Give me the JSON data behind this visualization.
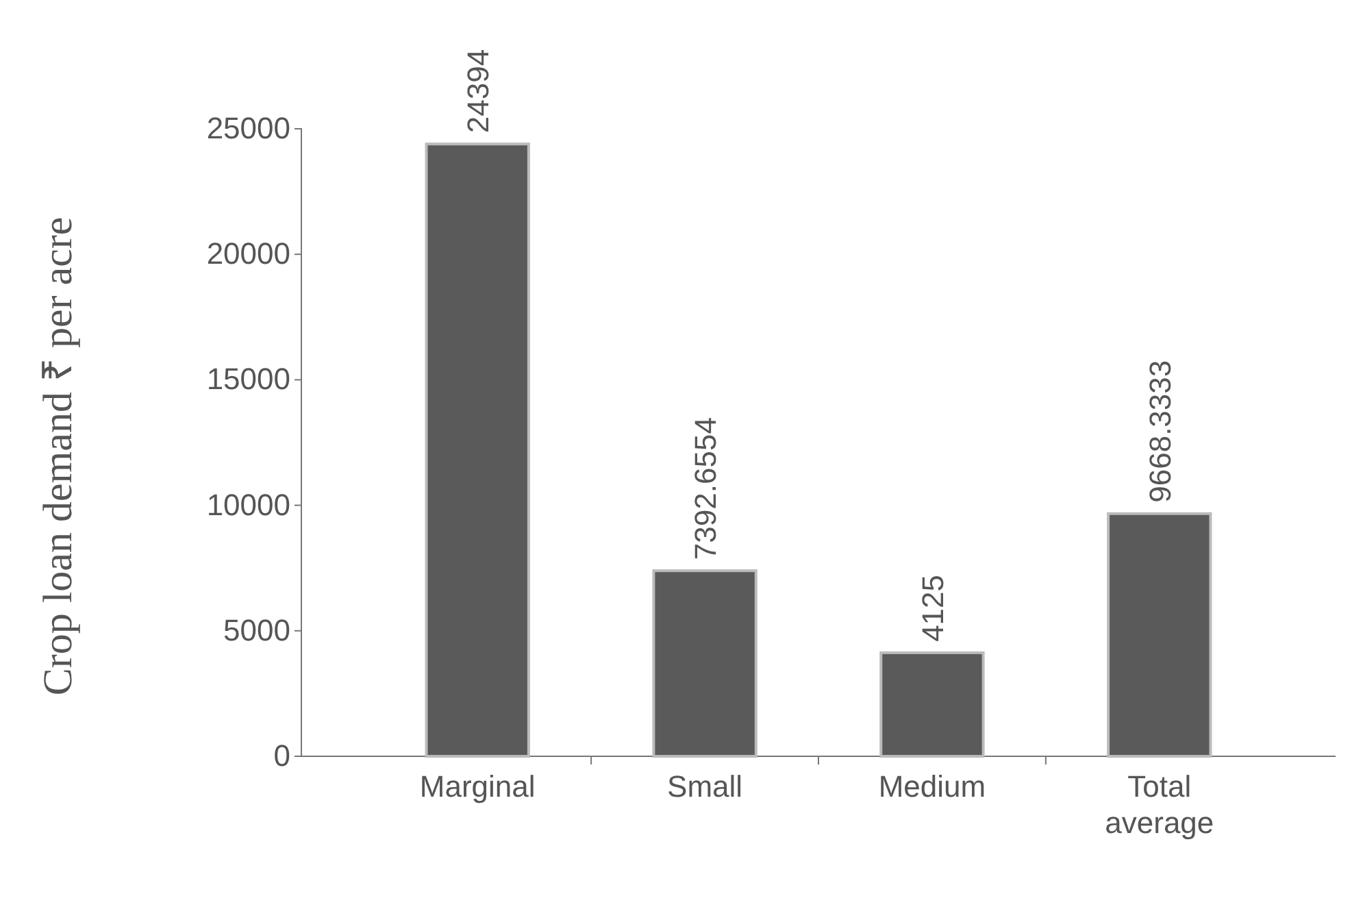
{
  "chart_data": {
    "type": "bar",
    "ylabel": "Crop loan demand ₹ per acre",
    "categories": [
      "Marginal",
      "Small",
      "Medium",
      "Total average"
    ],
    "values": [
      24394,
      7392.6554,
      4125,
      9668.3333
    ],
    "color": "#5a5a5a",
    "ylim": [
      0,
      25000
    ],
    "yticks": [
      0,
      5000,
      10000,
      15000,
      20000,
      25000
    ],
    "data_labels": true
  }
}
